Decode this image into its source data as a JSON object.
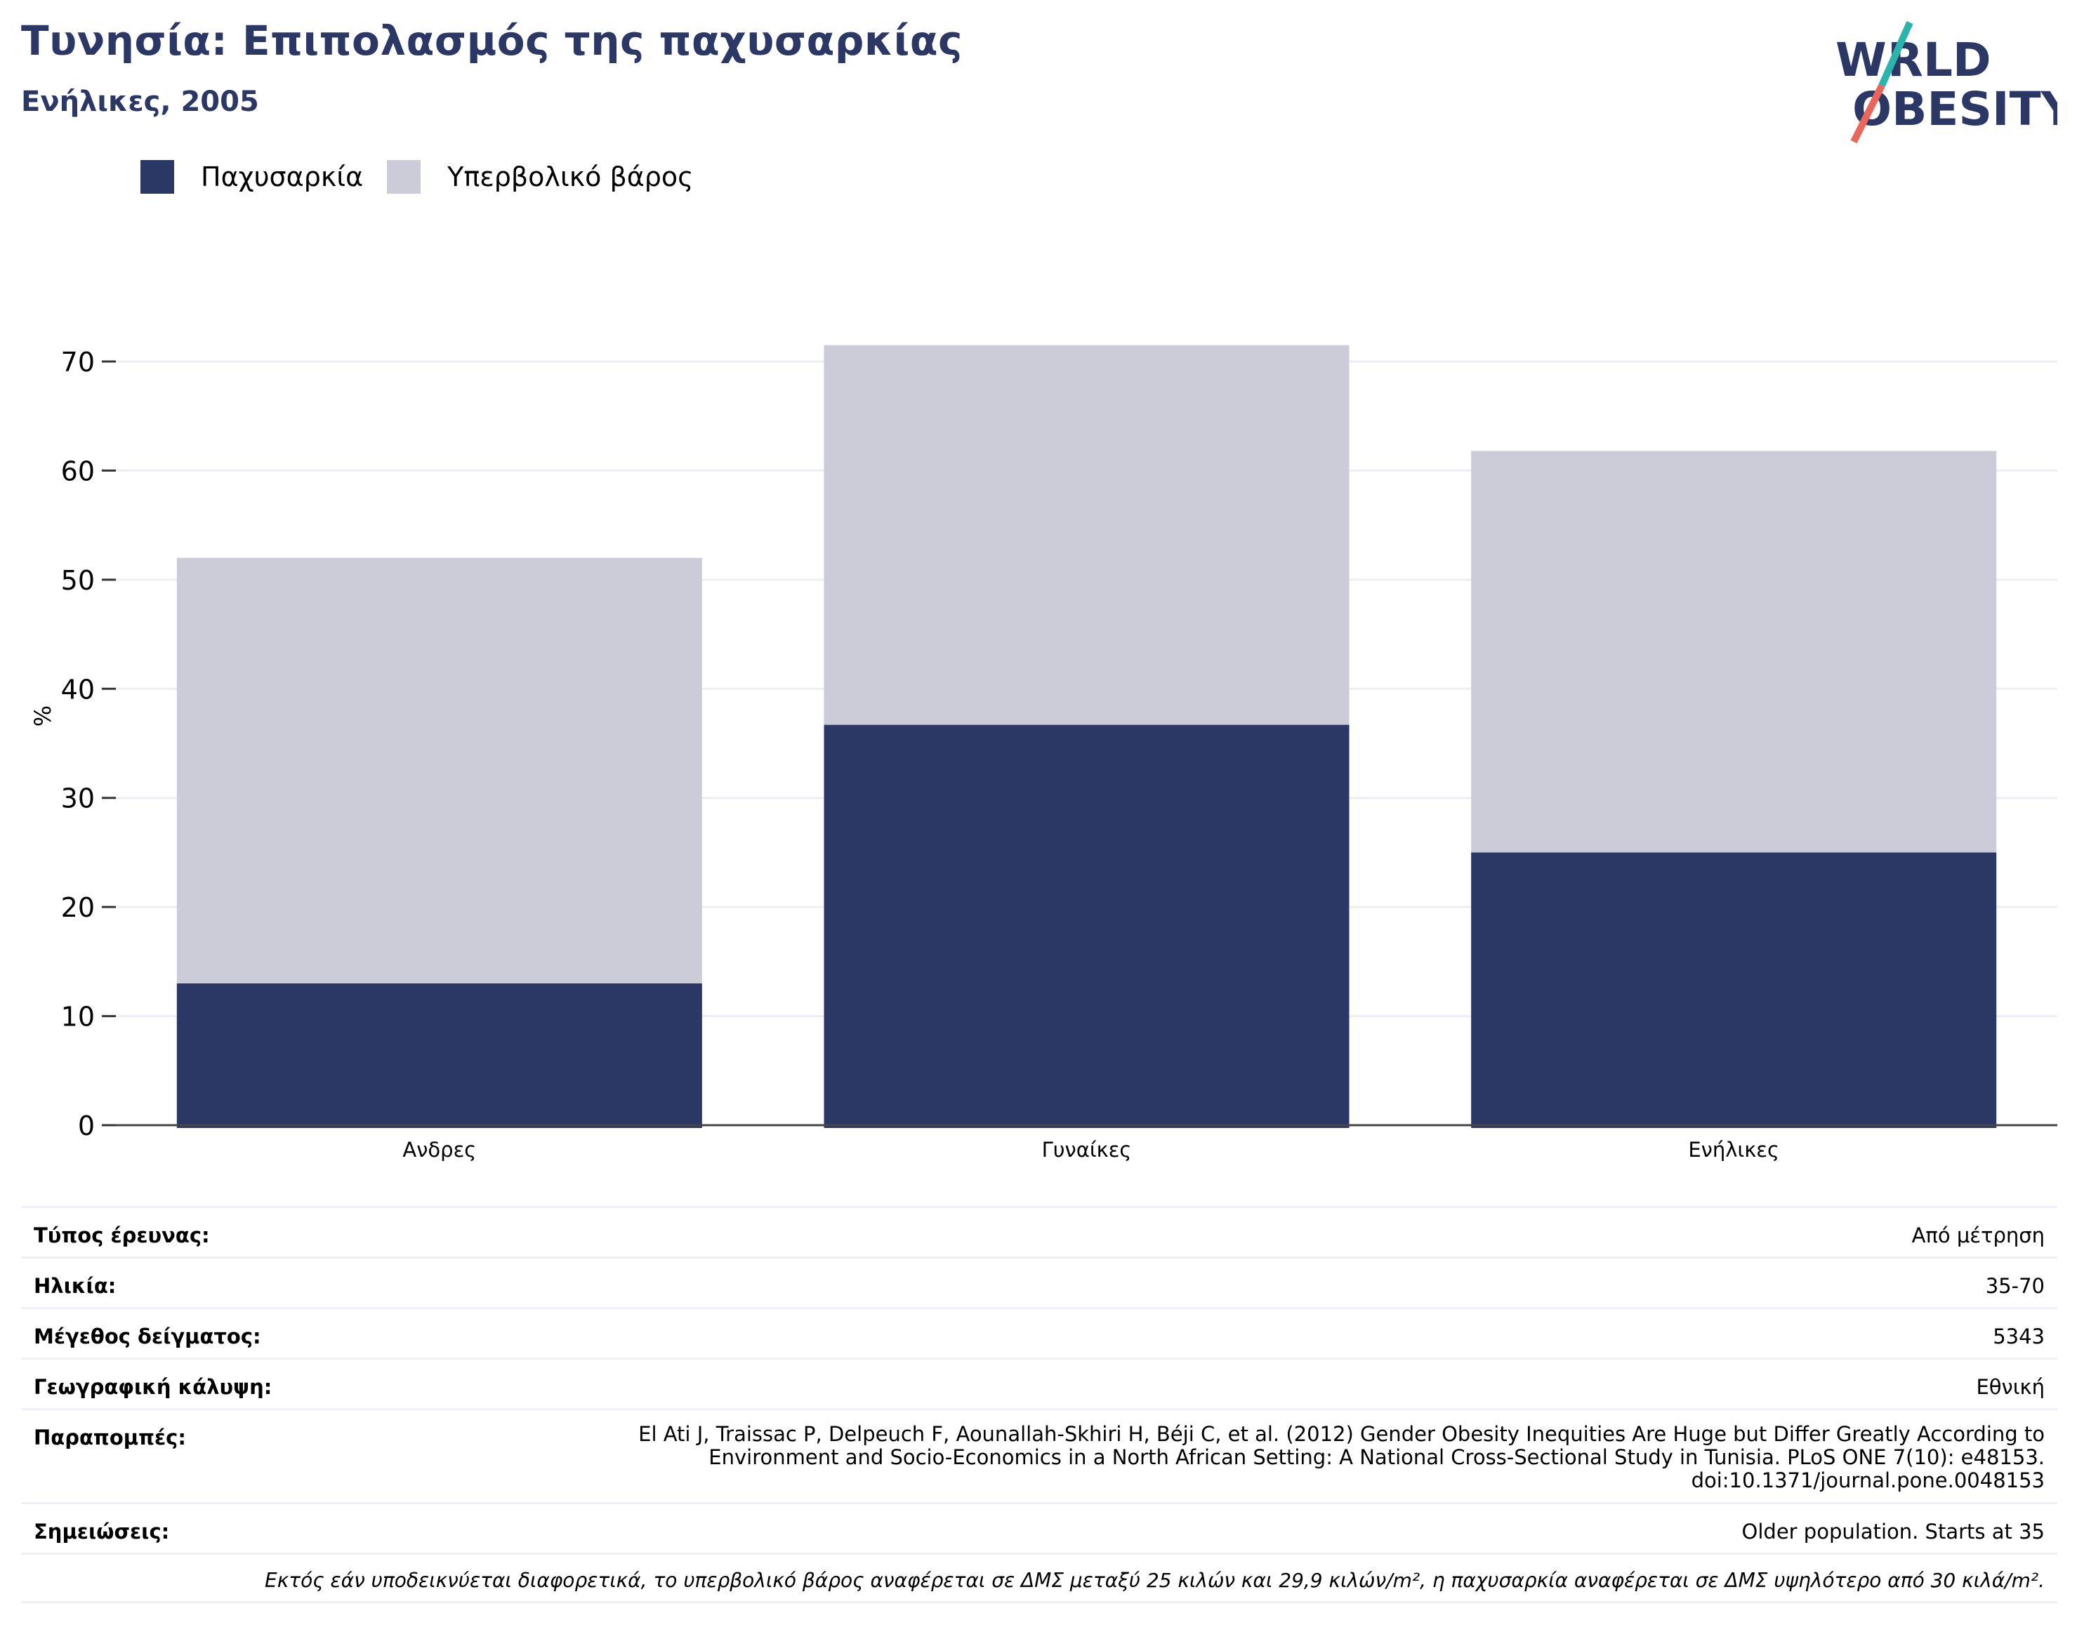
{
  "header": {
    "title": "Τυνησία: Επιπολασμός της παχυσαρκίας",
    "subtitle": "Ενήλικες, 2005"
  },
  "logo": {
    "line1": "WORLD",
    "line2": "OBESITY"
  },
  "legend": {
    "obesity": "Παχυσαρκία",
    "overweight": "Υπερβολικό βάρος"
  },
  "colors": {
    "obesity": "#2b3764",
    "overweight": "#cbccd8",
    "brand_teal": "#2bb3ad",
    "brand_coral": "#e8675a"
  },
  "chart_data": {
    "type": "bar",
    "stacked": true,
    "categories": [
      "Ανδρες",
      "Γυναίκες",
      "Ενήλικες"
    ],
    "series": [
      {
        "name": "Παχυσαρκία",
        "values": [
          13.0,
          36.7,
          25.0
        ]
      },
      {
        "name": "Υπερβολικό βάρος",
        "values": [
          39.0,
          34.8,
          36.8
        ]
      }
    ],
    "ylabel": "%",
    "ylim": [
      0,
      70
    ],
    "yticks": [
      0,
      10,
      20,
      30,
      40,
      50,
      60,
      70
    ],
    "grid": true,
    "legend_position": "top-left"
  },
  "info": {
    "survey_type": {
      "label": "Τύπος έρευνας:",
      "value": "Από μέτρηση"
    },
    "age": {
      "label": "Ηλικία:",
      "value": "35-70"
    },
    "sample_size": {
      "label": "Μέγεθος δείγματος:",
      "value": "5343"
    },
    "coverage": {
      "label": "Γεωγραφική κάλυψη:",
      "value": "Εθνική"
    },
    "references": {
      "label": "Παραπομπές:",
      "value": "El Ati J, Traissac P, Delpeuch F, Aounallah-Skhiri H, Béji C, et al. (2012) Gender Obesity Inequities Are Huge but Differ Greatly According to Environment and Socio-Economics in a North African Setting: A National Cross-Sectional Study in Tunisia. PLoS ONE 7(10): e48153. doi:10.1371/journal.pone.0048153"
    },
    "notes": {
      "label": "Σημειώσεις:",
      "value": "Older population. Starts at 35"
    },
    "footnote": "Εκτός εάν υποδεικνύεται διαφορετικά, το υπερβολικό βάρος αναφέρεται σε ΔΜΣ μεταξύ 25 κιλών και 29,9 κιλών/m², η παχυσαρκία αναφέρεται σε ΔΜΣ υψηλότερο από 30 κιλά/m²."
  }
}
